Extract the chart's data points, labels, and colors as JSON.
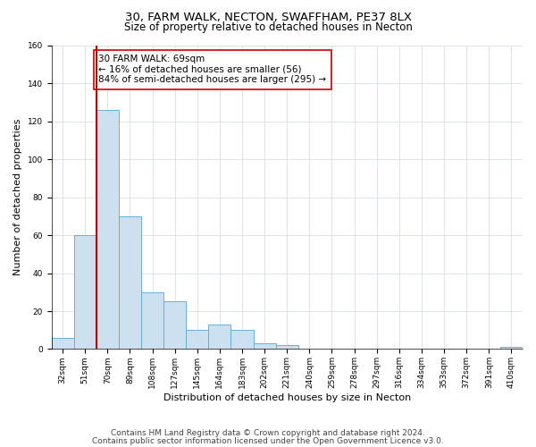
{
  "title": "30, FARM WALK, NECTON, SWAFFHAM, PE37 8LX",
  "subtitle": "Size of property relative to detached houses in Necton",
  "xlabel": "Distribution of detached houses by size in Necton",
  "ylabel": "Number of detached properties",
  "footer_lines": [
    "Contains HM Land Registry data © Crown copyright and database right 2024.",
    "Contains public sector information licensed under the Open Government Licence v3.0."
  ],
  "bin_labels": [
    "32sqm",
    "51sqm",
    "70sqm",
    "89sqm",
    "108sqm",
    "127sqm",
    "145sqm",
    "164sqm",
    "183sqm",
    "202sqm",
    "221sqm",
    "240sqm",
    "259sqm",
    "278sqm",
    "297sqm",
    "316sqm",
    "334sqm",
    "353sqm",
    "372sqm",
    "391sqm",
    "410sqm"
  ],
  "bar_values": [
    6,
    60,
    126,
    70,
    30,
    25,
    10,
    13,
    10,
    3,
    2,
    0,
    0,
    0,
    0,
    0,
    0,
    0,
    0,
    0,
    1
  ],
  "bar_color": "#cce0f0",
  "bar_edge_color": "#6baed6",
  "highlight_bin_index": 2,
  "highlight_color": "#cc0000",
  "annotation_box_text": "30 FARM WALK: 69sqm\n← 16% of detached houses are smaller (56)\n84% of semi-detached houses are larger (295) →",
  "ylim": [
    0,
    160
  ],
  "yticks": [
    0,
    20,
    40,
    60,
    80,
    100,
    120,
    140,
    160
  ],
  "background_color": "#ffffff",
  "grid_color": "#d0d8e4",
  "title_fontsize": 9.5,
  "subtitle_fontsize": 8.5,
  "label_fontsize": 8,
  "tick_fontsize": 6.5,
  "annotation_fontsize": 7.5,
  "footer_fontsize": 6.5
}
